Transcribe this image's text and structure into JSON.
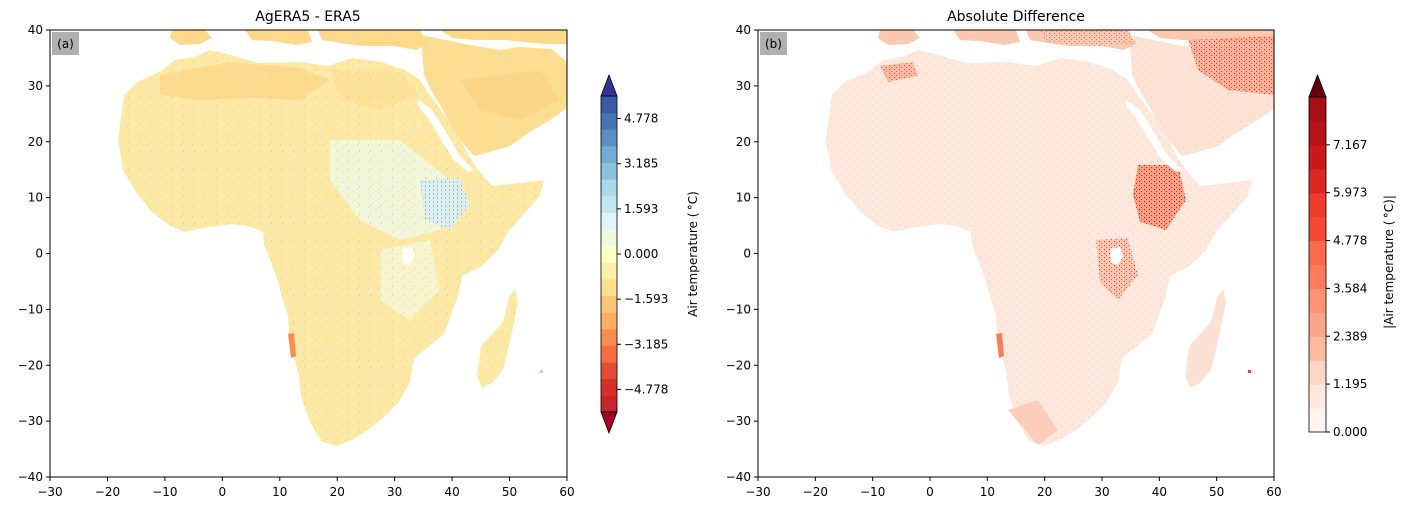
{
  "panels": [
    {
      "title": "AgERA5 - ERA5",
      "tag": "(a)",
      "xlim": [
        -30,
        60
      ],
      "ylim": [
        -40,
        40
      ],
      "xticks": [
        "−30",
        "−20",
        "−10",
        "0",
        "10",
        "20",
        "30",
        "40",
        "50",
        "60"
      ],
      "yticks": [
        "−40",
        "−30",
        "−20",
        "−10",
        "0",
        "10",
        "20",
        "30",
        "40"
      ],
      "colorbar": {
        "label": "Air temperature ( °C)",
        "cmap": "RdYlBu",
        "range": [
          -5.574,
          5.574
        ],
        "extend": "both",
        "ticks": [
          4.778,
          3.185,
          1.593,
          0.0,
          -1.593,
          -3.185,
          -4.778
        ],
        "tick_labels": [
          "4.778",
          "3.185",
          "1.593",
          "0.000",
          "−1.593",
          "−3.185",
          "−4.778"
        ],
        "colors": [
          "#a50026",
          "#c1272d",
          "#d73027",
          "#e34d34",
          "#f46d43",
          "#f88d52",
          "#fdae61",
          "#fdc57a",
          "#fee090",
          "#fff0a8",
          "#ffffbf",
          "#f0f9e0",
          "#e0f3f8",
          "#c4e5f0",
          "#abd9e9",
          "#8bc3de",
          "#74add1",
          "#5b8ec2",
          "#4575b4",
          "#3c59a6",
          "#313695"
        ]
      }
    },
    {
      "title": "Absolute Difference",
      "tag": "(b)",
      "xlim": [
        -30,
        60
      ],
      "ylim": [
        -40,
        40
      ],
      "xticks": [
        "−30",
        "−20",
        "−10",
        "0",
        "10",
        "20",
        "30",
        "40",
        "50",
        "60"
      ],
      "yticks": [
        "−40",
        "−30",
        "−20",
        "−10",
        "0",
        "10",
        "20",
        "30",
        "40"
      ],
      "colorbar": {
        "label": "|Air temperature ( °C)|",
        "cmap": "Reds",
        "range": [
          0,
          8.36
        ],
        "extend": "max",
        "ticks": [
          7.167,
          5.973,
          4.778,
          3.584,
          2.389,
          1.195,
          0.0
        ],
        "tick_labels": [
          "7.167",
          "5.973",
          "4.778",
          "3.584",
          "2.389",
          "1.195",
          "0.000"
        ],
        "colors": [
          "#fff5f0",
          "#fee8de",
          "#fdd5c4",
          "#fcbba1",
          "#fca689",
          "#fc9272",
          "#fb7b5b",
          "#fb6a4a",
          "#f24a35",
          "#ef3b2c",
          "#db2824",
          "#cb181d",
          "#b41419",
          "#a50f15",
          "#67000d"
        ]
      }
    }
  ]
}
